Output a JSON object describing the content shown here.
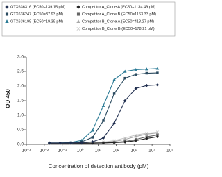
{
  "chart_data": {
    "type": "line",
    "x_label": "Concentration of detection antibody (pM)",
    "y_label": "OD 450",
    "log_x": true,
    "xlim": [
      0.001,
      100000
    ],
    "xticks": [
      {
        "value": 0.001,
        "label": "10⁻³"
      },
      {
        "value": 0.01,
        "label": "10⁻²"
      },
      {
        "value": 0.1,
        "label": "10⁻¹"
      },
      {
        "value": 1,
        "label": "10⁰"
      },
      {
        "value": 10,
        "label": "10¹"
      },
      {
        "value": 100,
        "label": "10²"
      },
      {
        "value": 1000,
        "label": "10³"
      },
      {
        "value": 10000,
        "label": "10⁴"
      },
      {
        "value": 100000,
        "label": "10⁵"
      }
    ],
    "ylim": [
      0,
      3
    ],
    "yticks": [
      {
        "value": 0,
        "label": "0.0"
      },
      {
        "value": 0.5,
        "label": "0.5"
      },
      {
        "value": 1,
        "label": "1.0"
      },
      {
        "value": 1.5,
        "label": "1.5"
      },
      {
        "value": 2,
        "label": "2.0"
      },
      {
        "value": 2.5,
        "label": "2.5"
      },
      {
        "value": 3,
        "label": "3.0"
      }
    ],
    "x": [
      0.0191,
      0.0763,
      0.305,
      1.22,
      4.88,
      19.5,
      78.1,
      312.5,
      1250,
      5000,
      20000
    ],
    "series": [
      {
        "name": "GTX636316 (EC50=139.15 pM)",
        "color": "#1f2d4e",
        "marker": "diamond",
        "values": [
          0.05,
          0.05,
          0.05,
          0.06,
          0.09,
          0.22,
          0.72,
          1.5,
          1.92,
          2.02,
          2.04
        ]
      },
      {
        "name": "GTX636247 (EC50=37.93 pM)",
        "color": "#2a4a5f",
        "marker": "square",
        "values": [
          0.05,
          0.05,
          0.06,
          0.09,
          0.24,
          0.81,
          1.74,
          2.27,
          2.4,
          2.44,
          2.45
        ]
      },
      {
        "name": "GTX636199 (EC50=19.39 pM)",
        "color": "#2b7b96",
        "marker": "triangle",
        "values": [
          0.05,
          0.05,
          0.07,
          0.14,
          0.48,
          1.33,
          2.22,
          2.5,
          2.56,
          2.58,
          2.6
        ]
      },
      {
        "name": "Competitor A_Clone A (EC50=1134.49 pM)",
        "color": "#222222",
        "marker": "diamond",
        "values": [
          0.04,
          0.04,
          0.04,
          0.04,
          0.04,
          0.05,
          0.06,
          0.08,
          0.13,
          0.2,
          0.26
        ]
      },
      {
        "name": "Competitor A_Clone B (EC50=1163.33 pM)",
        "color": "#666666",
        "marker": "square",
        "values": [
          0.04,
          0.04,
          0.04,
          0.04,
          0.05,
          0.05,
          0.07,
          0.1,
          0.17,
          0.26,
          0.32
        ]
      },
      {
        "name": "Competitor B_Clone A (EC50=418.27 pM)",
        "color": "#a8a8a8",
        "marker": "triangle",
        "values": [
          0.04,
          0.04,
          0.04,
          0.05,
          0.05,
          0.07,
          0.1,
          0.17,
          0.27,
          0.35,
          0.39
        ]
      },
      {
        "name": "Competitor B_Clone B (EC50=178.21 pM)",
        "color": "#c8c8c8",
        "marker": "x",
        "values": [
          0.04,
          0.04,
          0.04,
          0.05,
          0.06,
          0.08,
          0.13,
          0.22,
          0.32,
          0.38,
          0.42
        ]
      }
    ]
  }
}
